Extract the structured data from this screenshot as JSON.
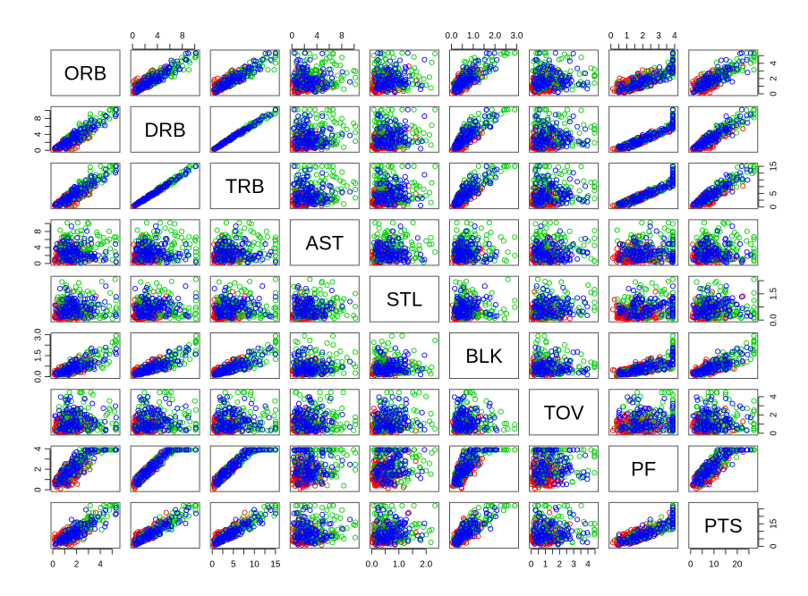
{
  "chart_data": {
    "type": "scatter",
    "title": "",
    "subtitle": "",
    "kind": "scatterplot-matrix",
    "variables": [
      "ORB",
      "DRB",
      "TRB",
      "AST",
      "STL",
      "BLK",
      "TOV",
      "PF",
      "PTS"
    ],
    "groups": [
      {
        "name": "group-red",
        "color": "#FF0000"
      },
      {
        "name": "group-green",
        "color": "#00CD00"
      },
      {
        "name": "group-blue",
        "color": "#0000FF"
      }
    ],
    "ranges": {
      "ORB": [
        0,
        5.5
      ],
      "DRB": [
        0,
        10.5
      ],
      "TRB": [
        0,
        15.5
      ],
      "AST": [
        0,
        10.5
      ],
      "STL": [
        0,
        2.4
      ],
      "BLK": [
        0,
        3.0
      ],
      "TOV": [
        0,
        4.6
      ],
      "PF": [
        0,
        4.1
      ],
      "PTS": [
        0,
        28
      ]
    },
    "axes": {
      "top": [
        {
          "variable": "DRB",
          "ticks": [
            "0",
            "4",
            "8"
          ]
        },
        {
          "variable": "AST",
          "ticks": [
            "0",
            "4",
            "8"
          ]
        },
        {
          "variable": "BLK",
          "ticks": [
            "0.0",
            "1.0",
            "2.0",
            "3.0"
          ]
        },
        {
          "variable": "PF",
          "ticks": [
            "0",
            "1",
            "2",
            "3",
            "4"
          ]
        }
      ],
      "bottom": [
        {
          "variable": "ORB",
          "ticks": [
            "0",
            "2",
            "4"
          ]
        },
        {
          "variable": "TRB",
          "ticks": [
            "0",
            "5",
            "10",
            "15"
          ]
        },
        {
          "variable": "STL",
          "ticks": [
            "0.0",
            "1.0",
            "2.0"
          ]
        },
        {
          "variable": "TOV",
          "ticks": [
            "0",
            "1",
            "2",
            "3",
            "4"
          ]
        },
        {
          "variable": "PTS",
          "ticks": [
            "0",
            "10",
            "20"
          ]
        }
      ],
      "left": [
        {
          "variable": "DRB",
          "ticks": [
            "0",
            "4",
            "8"
          ]
        },
        {
          "variable": "AST",
          "ticks": [
            "0",
            "4",
            "8"
          ]
        },
        {
          "variable": "BLK",
          "ticks": [
            "0.0",
            "1.5",
            "3.0"
          ]
        },
        {
          "variable": "PF",
          "ticks": [
            "0",
            "2",
            "4"
          ]
        }
      ],
      "right": [
        {
          "variable": "ORB",
          "ticks": [
            "0",
            "2",
            "4"
          ]
        },
        {
          "variable": "TRB",
          "ticks": [
            "0",
            "5",
            "15"
          ]
        },
        {
          "variable": "STL",
          "ticks": [
            "0.0",
            "1.5"
          ]
        },
        {
          "variable": "TOV",
          "ticks": [
            "0",
            "2",
            "4"
          ]
        },
        {
          "variable": "PTS",
          "ticks": [
            "0",
            "15"
          ]
        }
      ]
    },
    "grid": false,
    "legend": "none"
  }
}
